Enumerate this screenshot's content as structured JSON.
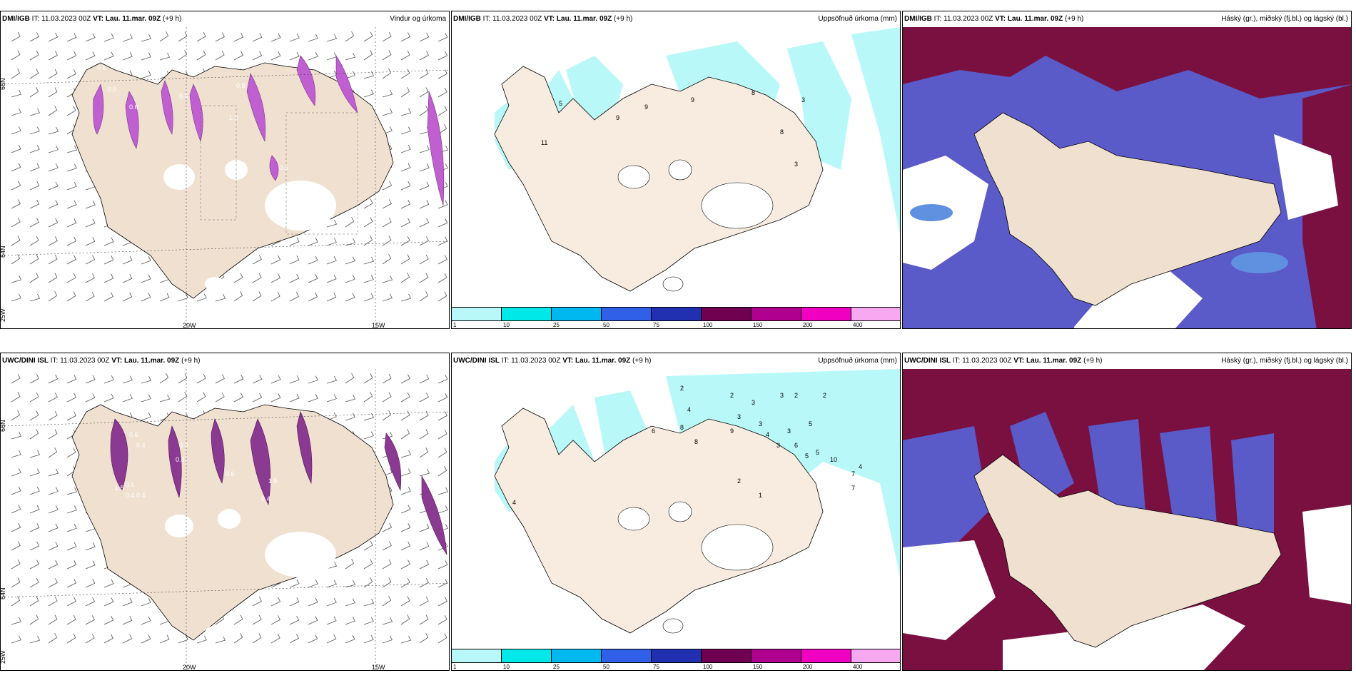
{
  "panels": [
    {
      "id": "p1",
      "source": "DMI/IGB",
      "it_label": "IT:",
      "it": "11.03.2023 00Z",
      "vt_label": "VT:",
      "vt": "Lau. 11.mar. 09Z",
      "lead": "(+9 h)",
      "title": "Vindur og úrkoma",
      "type": "wind"
    },
    {
      "id": "p2",
      "source": "DMI/IGB",
      "it_label": "IT:",
      "it": "11.03.2023 00Z",
      "vt_label": "VT:",
      "vt": "Lau. 11.mar. 09Z",
      "lead": "(+9 h)",
      "title": "Uppsöfnuð úrkoma (mm)",
      "type": "accum"
    },
    {
      "id": "p3",
      "source": "DMI/IGB",
      "it_label": "IT:",
      "it": "11.03.2023 00Z",
      "vt_label": "VT:",
      "vt": "Lau. 11.mar. 09Z",
      "lead": "(+9 h)",
      "title": "Háský (gr.), miðský (fj.bl.) og lágský (bl.)",
      "type": "cloud"
    },
    {
      "id": "p4",
      "source": "UWC/DINI ISL",
      "it_label": "IT:",
      "it": "11.03.2023 00Z",
      "vt_label": "VT:",
      "vt": "Lau. 11.mar. 09Z",
      "lead": "(+9 h)",
      "title": "",
      "type": "wind"
    },
    {
      "id": "p5",
      "source": "UWC/DINI ISL",
      "it_label": "IT:",
      "it": "11.03.2023 00Z",
      "vt_label": "VT:",
      "vt": "Lau. 11.mar. 09Z",
      "lead": "(+9 h)",
      "title": "Uppsöfnuð úrkoma (mm)",
      "type": "accum"
    },
    {
      "id": "p6",
      "source": "UWC/DINI ISL",
      "it_label": "IT:",
      "it": "11.03.2023 00Z",
      "vt_label": "VT:",
      "vt": "Lau. 11.mar. 09Z",
      "lead": "(+9 h)",
      "title": "Háský (gr.), miðský (fj.bl.) og lágský (bl.)",
      "type": "cloud"
    }
  ],
  "axis_labels": {
    "lon_20": "20W",
    "lon_15": "15W",
    "lat_66": "66N",
    "lat_64": "64N",
    "lon_25": "25W"
  },
  "colorbar": {
    "ticks": [
      "1",
      "10",
      "25",
      "50",
      "75",
      "100",
      "150",
      "200",
      "400"
    ],
    "colors": [
      "#b8f8f8",
      "#00e8e8",
      "#00b8f0",
      "#3060e8",
      "#2030b0",
      "#700050",
      "#b00090",
      "#f000c0",
      "#f8a8f0"
    ]
  },
  "p1_values": [
    "0.6",
    "0.8",
    "0.8",
    "1.0",
    "0.6",
    "0.6",
    "0.6",
    "0.6"
  ],
  "p2_values": [
    "5",
    "9",
    "9",
    "9",
    "8",
    "3",
    "11",
    "8",
    "3"
  ],
  "p4_values": [
    "0.6",
    "0.4",
    "0.3",
    "0.5",
    "1.5",
    "0.6",
    "0.4",
    "0.4",
    "0.3",
    "1.5",
    "0.4"
  ],
  "p5_values": [
    "2",
    "2",
    "3",
    "3",
    "2",
    "2",
    "4",
    "3",
    "3",
    "3",
    "6",
    "8",
    "9",
    "4",
    "5",
    "6",
    "5",
    "8",
    "2",
    "1",
    "3",
    "5",
    "10",
    "7",
    "4",
    "7",
    "4"
  ],
  "colors": {
    "land": "#f0e0d0",
    "cyan": "#b8f8f8",
    "magenta": "#c060d0",
    "dark_red": "#7a1040",
    "blue": "#5050c8",
    "light_blue": "#6090e0"
  }
}
